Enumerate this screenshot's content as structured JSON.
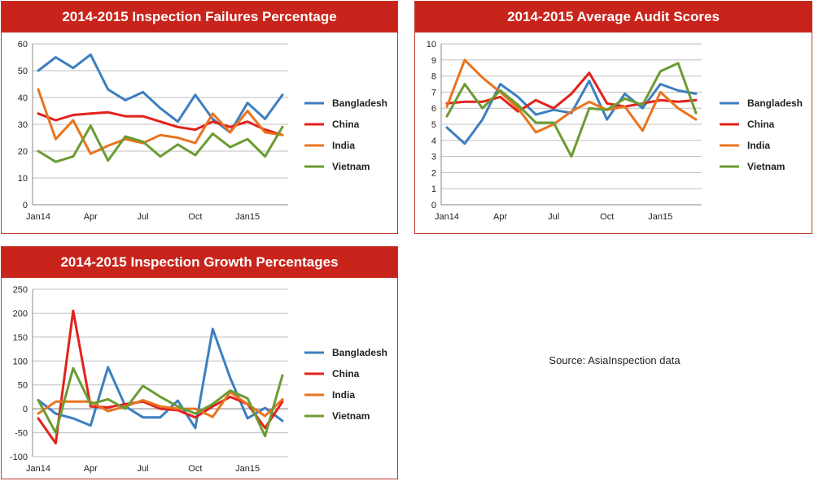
{
  "colors": {
    "title_bg": "#c9241b",
    "Bangladesh": "#3c7fc0",
    "China": "#e3211c",
    "India": "#e9741f",
    "Vietnam": "#6a9c32"
  },
  "source_note": "Source: AsiaInspection data",
  "chart_data": [
    {
      "type": "line",
      "title": "2014-2015 Inspection Failures Percentage",
      "x_tick_labels": [
        "Jan14",
        "Apr",
        "Jul",
        "Oct",
        "Jan15"
      ],
      "ylim": [
        0,
        60
      ],
      "yticks": [
        "0",
        "10",
        "20",
        "30",
        "40",
        "50",
        "60"
      ],
      "grid": true,
      "legend": "right",
      "series": [
        {
          "name": "Bangladesh",
          "values": [
            50,
            55,
            51,
            56,
            43,
            39,
            42,
            36,
            31,
            41,
            32,
            27,
            38,
            32,
            41
          ]
        },
        {
          "name": "China",
          "values": [
            34,
            31.5,
            33.5,
            34,
            34.5,
            33,
            33,
            31,
            29,
            28,
            31,
            29,
            31,
            28,
            26
          ]
        },
        {
          "name": "India",
          "values": [
            43,
            24.5,
            31.5,
            19,
            22,
            24.5,
            23,
            26,
            25,
            23,
            34,
            27,
            35,
            27,
            26
          ]
        },
        {
          "name": "Vietnam",
          "values": [
            20,
            16,
            18,
            29.5,
            16.5,
            25.5,
            23.5,
            18,
            22.5,
            18.5,
            26.5,
            21.5,
            24.5,
            18,
            29
          ]
        }
      ]
    },
    {
      "type": "line",
      "title": "2014-2015 Average Audit Scores",
      "x_tick_labels": [
        "Jan14",
        "Apr",
        "Jul",
        "Oct",
        "Jan15"
      ],
      "ylim": [
        0,
        10
      ],
      "yticks": [
        "0",
        "1",
        "2",
        "3",
        "4",
        "5",
        "6",
        "7",
        "8",
        "9",
        "10"
      ],
      "grid": true,
      "legend": "right",
      "series": [
        {
          "name": "Bangladesh",
          "values": [
            4.8,
            3.8,
            5.3,
            7.5,
            6.7,
            5.6,
            5.9,
            5.7,
            7.7,
            5.3,
            6.9,
            6.0,
            7.5,
            7.1,
            6.9
          ]
        },
        {
          "name": "China",
          "values": [
            6.3,
            6.4,
            6.4,
            6.7,
            5.8,
            6.5,
            6.0,
            6.9,
            8.2,
            6.3,
            6.1,
            6.3,
            6.5,
            6.4,
            6.5
          ]
        },
        {
          "name": "India",
          "values": [
            6.1,
            9.0,
            7.9,
            7.0,
            6.0,
            4.5,
            5.0,
            5.8,
            6.4,
            5.9,
            6.1,
            4.6,
            7.0,
            6.0,
            5.3
          ]
        },
        {
          "name": "Vietnam",
          "values": [
            5.5,
            7.5,
            6.0,
            7.1,
            6.2,
            5.1,
            5.1,
            3.0,
            6.0,
            5.9,
            6.6,
            6.2,
            8.3,
            8.8,
            5.7
          ]
        }
      ]
    },
    {
      "type": "line",
      "title": "2014-2015 Inspection Growth Percentages",
      "x_tick_labels": [
        "Jan14",
        "Apr",
        "Jul",
        "Oct",
        "Jan15"
      ],
      "ylim": [
        -100,
        250
      ],
      "yticks": [
        "-100",
        "-50",
        "0",
        "50",
        "100",
        "150",
        "200",
        "250"
      ],
      "grid": true,
      "legend": "right",
      "series": [
        {
          "name": "Bangladesh",
          "values": [
            18,
            -10,
            -20,
            -35,
            87,
            5,
            -18,
            -18,
            17,
            -40,
            167,
            65,
            -20,
            2,
            -25
          ]
        },
        {
          "name": "China",
          "values": [
            -20,
            -72,
            205,
            5,
            3,
            10,
            15,
            0,
            -3,
            -18,
            5,
            25,
            10,
            -40,
            15
          ]
        },
        {
          "name": "India",
          "values": [
            -10,
            15,
            15,
            15,
            -5,
            5,
            18,
            5,
            0,
            0,
            -17,
            35,
            10,
            -15,
            20
          ]
        },
        {
          "name": "Vietnam",
          "values": [
            18,
            -50,
            85,
            10,
            20,
            0,
            48,
            25,
            5,
            -10,
            10,
            38,
            22,
            -57,
            70
          ]
        }
      ]
    }
  ]
}
